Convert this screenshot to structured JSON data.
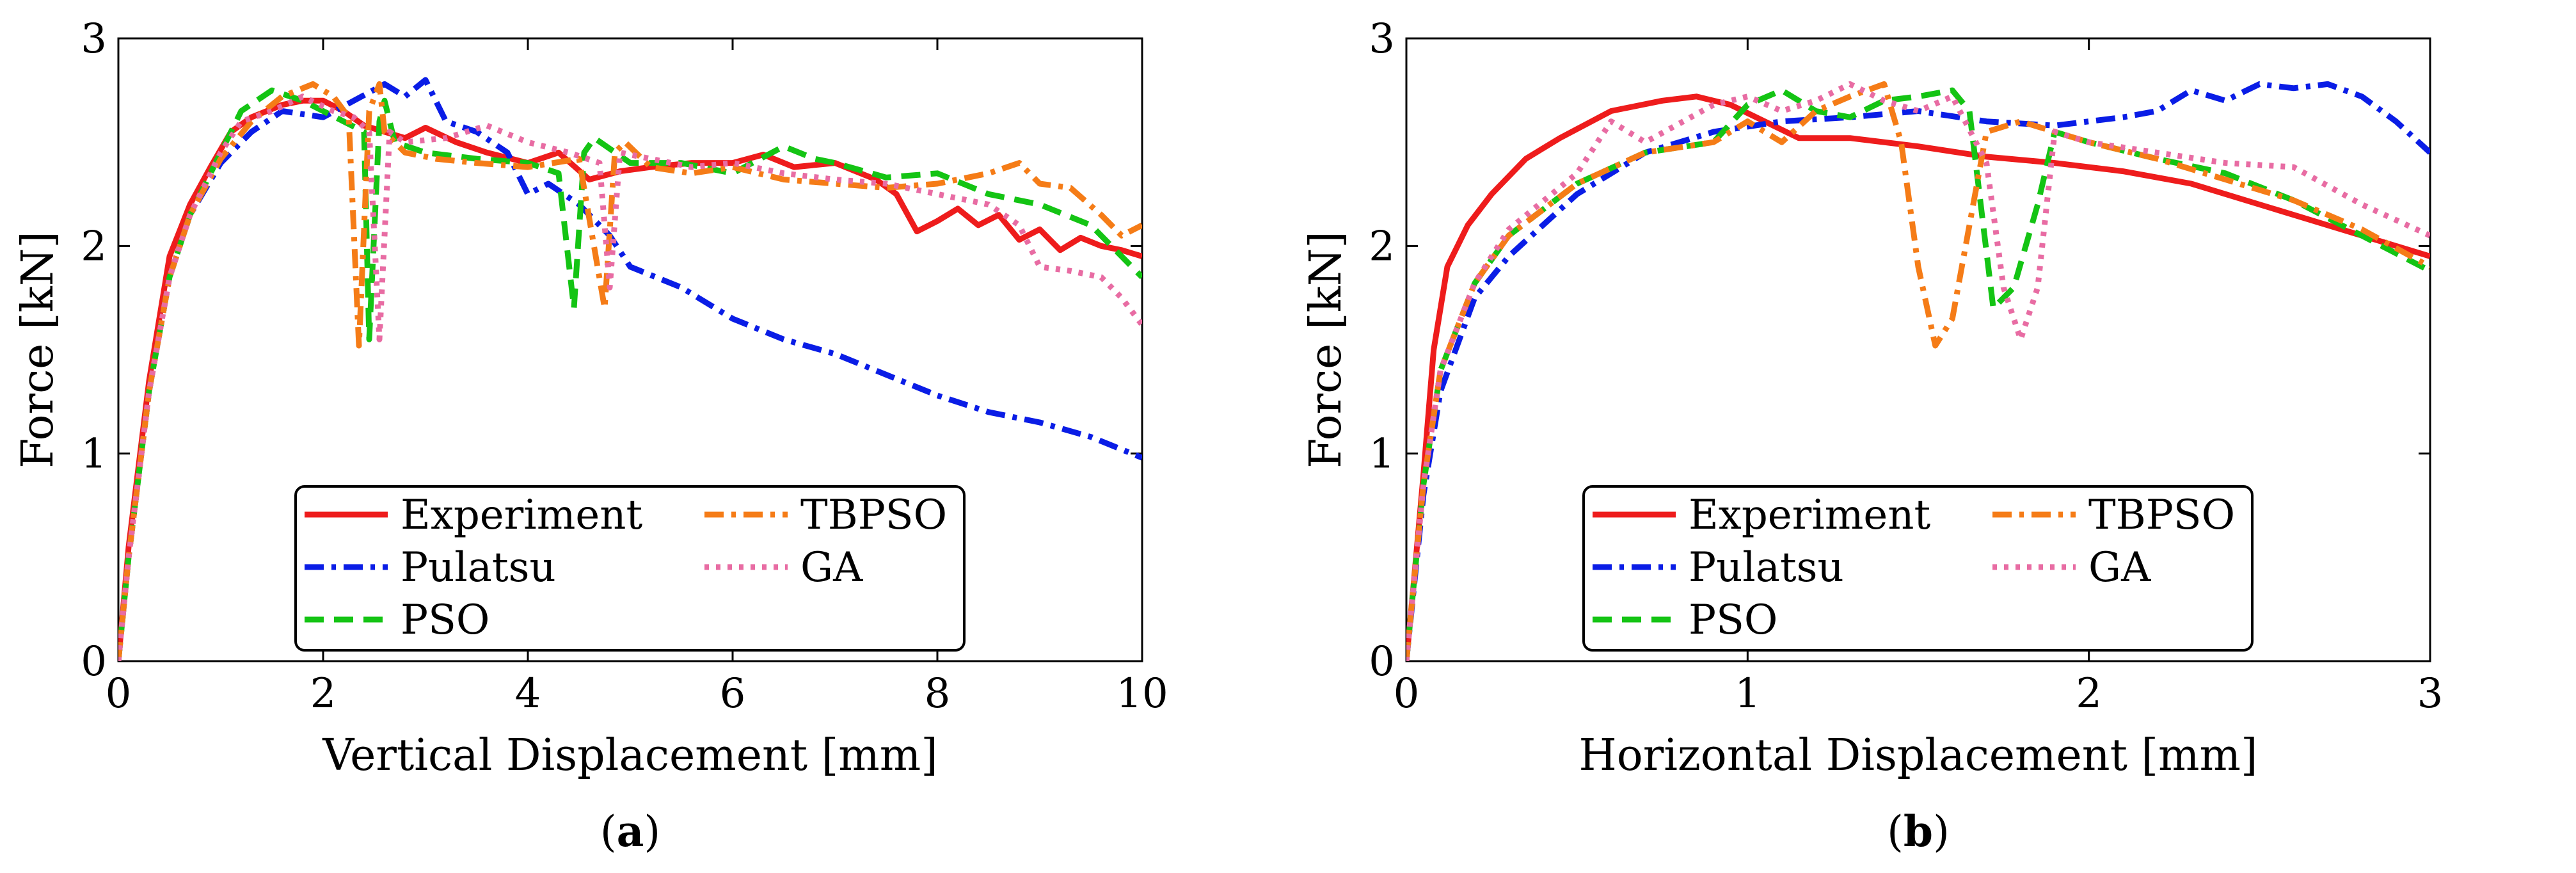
{
  "chart_data": [
    {
      "id": "a",
      "type": "line",
      "caption": "a",
      "xlabel": "Vertical Displacement [mm]",
      "ylabel": "Force [kN]",
      "xlim": [
        0,
        10
      ],
      "ylim": [
        0,
        3
      ],
      "xticks": [
        0,
        2,
        4,
        6,
        8,
        10
      ],
      "yticks": [
        0,
        1,
        2,
        3
      ],
      "legend": {
        "placement": "bottom-center",
        "columns": 2
      },
      "series": [
        {
          "name": "Experiment",
          "color": "#ee1c1c",
          "dash": "solid",
          "x": [
            0,
            0.1,
            0.3,
            0.5,
            0.7,
            0.9,
            1.1,
            1.3,
            1.6,
            1.8,
            2.0,
            2.2,
            2.4,
            2.6,
            2.8,
            3.0,
            3.3,
            3.6,
            4.0,
            4.3,
            4.6,
            4.9,
            5.2,
            5.6,
            6.0,
            6.3,
            6.6,
            7.0,
            7.4,
            7.6,
            7.8,
            8.0,
            8.2,
            8.4,
            8.6,
            8.8,
            9.0,
            9.2,
            9.4,
            9.6,
            9.8,
            10.0
          ],
          "y": [
            0,
            0.55,
            1.35,
            1.95,
            2.2,
            2.38,
            2.55,
            2.62,
            2.68,
            2.7,
            2.7,
            2.65,
            2.58,
            2.55,
            2.52,
            2.57,
            2.5,
            2.45,
            2.4,
            2.45,
            2.32,
            2.36,
            2.38,
            2.4,
            2.4,
            2.44,
            2.38,
            2.4,
            2.32,
            2.25,
            2.07,
            2.12,
            2.18,
            2.1,
            2.15,
            2.03,
            2.08,
            1.98,
            2.04,
            2.0,
            1.98,
            1.95
          ]
        },
        {
          "name": "Pulatsu",
          "color": "#0a1de6",
          "dash": "dashdot",
          "x": [
            0,
            0.1,
            0.3,
            0.5,
            0.7,
            1.0,
            1.3,
            1.6,
            2.0,
            2.3,
            2.6,
            2.8,
            3.0,
            3.2,
            3.5,
            3.8,
            4.0,
            4.2,
            4.5,
            4.8,
            5.0,
            5.5,
            6.0,
            6.5,
            7.0,
            7.5,
            8.0,
            8.5,
            9.0,
            9.5,
            10.0
          ],
          "y": [
            0,
            0.5,
            1.3,
            1.85,
            2.15,
            2.4,
            2.55,
            2.65,
            2.62,
            2.7,
            2.78,
            2.72,
            2.8,
            2.6,
            2.55,
            2.45,
            2.25,
            2.3,
            2.2,
            2.05,
            1.9,
            1.8,
            1.65,
            1.55,
            1.48,
            1.38,
            1.28,
            1.2,
            1.15,
            1.08,
            0.98
          ]
        },
        {
          "name": "PSO",
          "color": "#14c414",
          "dash": "dashed",
          "x": [
            0,
            0.1,
            0.3,
            0.5,
            0.7,
            1.0,
            1.2,
            1.5,
            1.8,
            2.0,
            2.2,
            2.4,
            2.45,
            2.55,
            2.6,
            2.7,
            3.0,
            3.5,
            4.0,
            4.3,
            4.45,
            4.55,
            4.65,
            5.0,
            5.5,
            6.0,
            6.5,
            6.8,
            7.0,
            7.5,
            8.0,
            8.5,
            9.0,
            9.5,
            10.0
          ],
          "y": [
            0,
            0.5,
            1.3,
            1.85,
            2.15,
            2.45,
            2.65,
            2.75,
            2.7,
            2.65,
            2.6,
            2.55,
            1.55,
            2.6,
            2.7,
            2.5,
            2.45,
            2.42,
            2.4,
            2.35,
            1.7,
            2.45,
            2.52,
            2.4,
            2.4,
            2.35,
            2.48,
            2.42,
            2.4,
            2.33,
            2.35,
            2.25,
            2.2,
            2.1,
            1.85
          ]
        },
        {
          "name": "TBPSO",
          "color": "#f57c17",
          "dash": "dashdot",
          "x": [
            0,
            0.1,
            0.3,
            0.5,
            0.7,
            1.0,
            1.3,
            1.6,
            1.9,
            2.1,
            2.25,
            2.35,
            2.45,
            2.55,
            2.6,
            2.8,
            3.1,
            3.5,
            4.0,
            4.5,
            4.75,
            4.85,
            4.95,
            5.2,
            5.6,
            6.0,
            6.5,
            7.0,
            7.5,
            8.0,
            8.5,
            8.8,
            9.0,
            9.3,
            9.6,
            9.8,
            10.0
          ],
          "y": [
            0,
            0.5,
            1.3,
            1.85,
            2.15,
            2.42,
            2.6,
            2.72,
            2.78,
            2.72,
            2.62,
            1.52,
            2.65,
            2.78,
            2.55,
            2.45,
            2.42,
            2.4,
            2.38,
            2.42,
            1.7,
            2.45,
            2.5,
            2.38,
            2.35,
            2.38,
            2.32,
            2.3,
            2.28,
            2.3,
            2.35,
            2.4,
            2.3,
            2.28,
            2.15,
            2.05,
            2.1
          ]
        },
        {
          "name": "GA",
          "color": "#e86ca3",
          "dash": "dotted",
          "x": [
            0,
            0.1,
            0.3,
            0.5,
            0.7,
            1.0,
            1.2,
            1.5,
            1.8,
            2.1,
            2.3,
            2.45,
            2.55,
            2.65,
            2.8,
            3.2,
            3.6,
            4.0,
            4.4,
            4.7,
            4.8,
            4.9,
            5.2,
            5.6,
            6.0,
            6.5,
            7.0,
            7.5,
            8.0,
            8.5,
            8.8,
            9.0,
            9.3,
            9.6,
            9.8,
            10.0
          ],
          "y": [
            0,
            0.5,
            1.3,
            1.85,
            2.15,
            2.45,
            2.6,
            2.65,
            2.72,
            2.65,
            2.62,
            2.55,
            1.55,
            2.55,
            2.5,
            2.52,
            2.58,
            2.5,
            2.45,
            2.4,
            1.8,
            2.45,
            2.42,
            2.38,
            2.4,
            2.35,
            2.32,
            2.3,
            2.25,
            2.2,
            2.1,
            1.9,
            1.88,
            1.85,
            1.75,
            1.62
          ]
        }
      ]
    },
    {
      "id": "b",
      "type": "line",
      "caption": "b",
      "xlabel": "Horizontal Displacement [mm]",
      "ylabel": "Force [kN]",
      "xlim": [
        0,
        3
      ],
      "ylim": [
        0,
        3
      ],
      "xticks": [
        0,
        1,
        2,
        3
      ],
      "yticks": [
        0,
        1,
        2,
        3
      ],
      "legend": {
        "placement": "bottom-center",
        "columns": 2
      },
      "series": [
        {
          "name": "Experiment",
          "color": "#ee1c1c",
          "dash": "solid",
          "x": [
            0,
            0.02,
            0.05,
            0.08,
            0.12,
            0.18,
            0.25,
            0.35,
            0.45,
            0.6,
            0.75,
            0.85,
            0.95,
            1.05,
            1.15,
            1.3,
            1.5,
            1.7,
            1.9,
            2.1,
            2.3,
            2.5,
            2.7,
            2.9,
            3.0
          ],
          "y": [
            0,
            0.35,
            0.9,
            1.5,
            1.9,
            2.1,
            2.25,
            2.42,
            2.52,
            2.65,
            2.7,
            2.72,
            2.68,
            2.6,
            2.52,
            2.52,
            2.48,
            2.43,
            2.4,
            2.36,
            2.3,
            2.2,
            2.1,
            2.0,
            1.95
          ]
        },
        {
          "name": "Pulatsu",
          "color": "#0a1de6",
          "dash": "dashdot",
          "x": [
            0,
            0.05,
            0.1,
            0.2,
            0.3,
            0.5,
            0.7,
            0.9,
            1.1,
            1.3,
            1.5,
            1.7,
            1.9,
            2.1,
            2.2,
            2.3,
            2.4,
            2.5,
            2.6,
            2.7,
            2.8,
            2.9,
            3.0
          ],
          "y": [
            0,
            0.8,
            1.3,
            1.75,
            1.95,
            2.25,
            2.45,
            2.55,
            2.6,
            2.62,
            2.65,
            2.6,
            2.58,
            2.62,
            2.65,
            2.75,
            2.7,
            2.78,
            2.76,
            2.78,
            2.72,
            2.6,
            2.45
          ]
        },
        {
          "name": "PSO",
          "color": "#14c414",
          "dash": "dashed",
          "x": [
            0,
            0.05,
            0.1,
            0.2,
            0.3,
            0.5,
            0.7,
            0.9,
            1.0,
            1.1,
            1.2,
            1.3,
            1.4,
            1.5,
            1.6,
            1.65,
            1.72,
            1.78,
            1.85,
            1.9,
            2.0,
            2.2,
            2.4,
            2.6,
            2.8,
            3.0
          ],
          "y": [
            0,
            0.85,
            1.4,
            1.82,
            2.05,
            2.3,
            2.45,
            2.5,
            2.68,
            2.75,
            2.65,
            2.62,
            2.7,
            2.72,
            2.75,
            2.65,
            1.7,
            1.8,
            2.2,
            2.55,
            2.5,
            2.42,
            2.35,
            2.22,
            2.05,
            1.88
          ]
        },
        {
          "name": "TBPSO",
          "color": "#f57c17",
          "dash": "dashdot",
          "x": [
            0,
            0.05,
            0.1,
            0.2,
            0.3,
            0.5,
            0.7,
            0.9,
            1.0,
            1.1,
            1.2,
            1.3,
            1.4,
            1.45,
            1.5,
            1.55,
            1.6,
            1.65,
            1.7,
            1.8,
            2.0,
            2.2,
            2.4,
            2.6,
            2.8,
            3.0
          ],
          "y": [
            0,
            0.85,
            1.4,
            1.82,
            2.05,
            2.3,
            2.45,
            2.5,
            2.6,
            2.5,
            2.65,
            2.72,
            2.78,
            2.5,
            1.9,
            1.52,
            1.65,
            2.1,
            2.55,
            2.6,
            2.5,
            2.42,
            2.32,
            2.22,
            2.08,
            1.9
          ]
        },
        {
          "name": "GA",
          "color": "#e86ca3",
          "dash": "dotted",
          "x": [
            0,
            0.05,
            0.1,
            0.2,
            0.3,
            0.5,
            0.6,
            0.7,
            0.9,
            1.0,
            1.1,
            1.2,
            1.3,
            1.4,
            1.5,
            1.6,
            1.7,
            1.75,
            1.8,
            1.85,
            1.9,
            2.0,
            2.2,
            2.4,
            2.6,
            2.8,
            3.0
          ],
          "y": [
            0,
            0.85,
            1.4,
            1.82,
            2.08,
            2.35,
            2.6,
            2.5,
            2.68,
            2.72,
            2.65,
            2.7,
            2.78,
            2.7,
            2.65,
            2.72,
            2.4,
            1.8,
            1.55,
            1.8,
            2.55,
            2.5,
            2.45,
            2.4,
            2.38,
            2.2,
            2.05
          ]
        }
      ]
    }
  ]
}
